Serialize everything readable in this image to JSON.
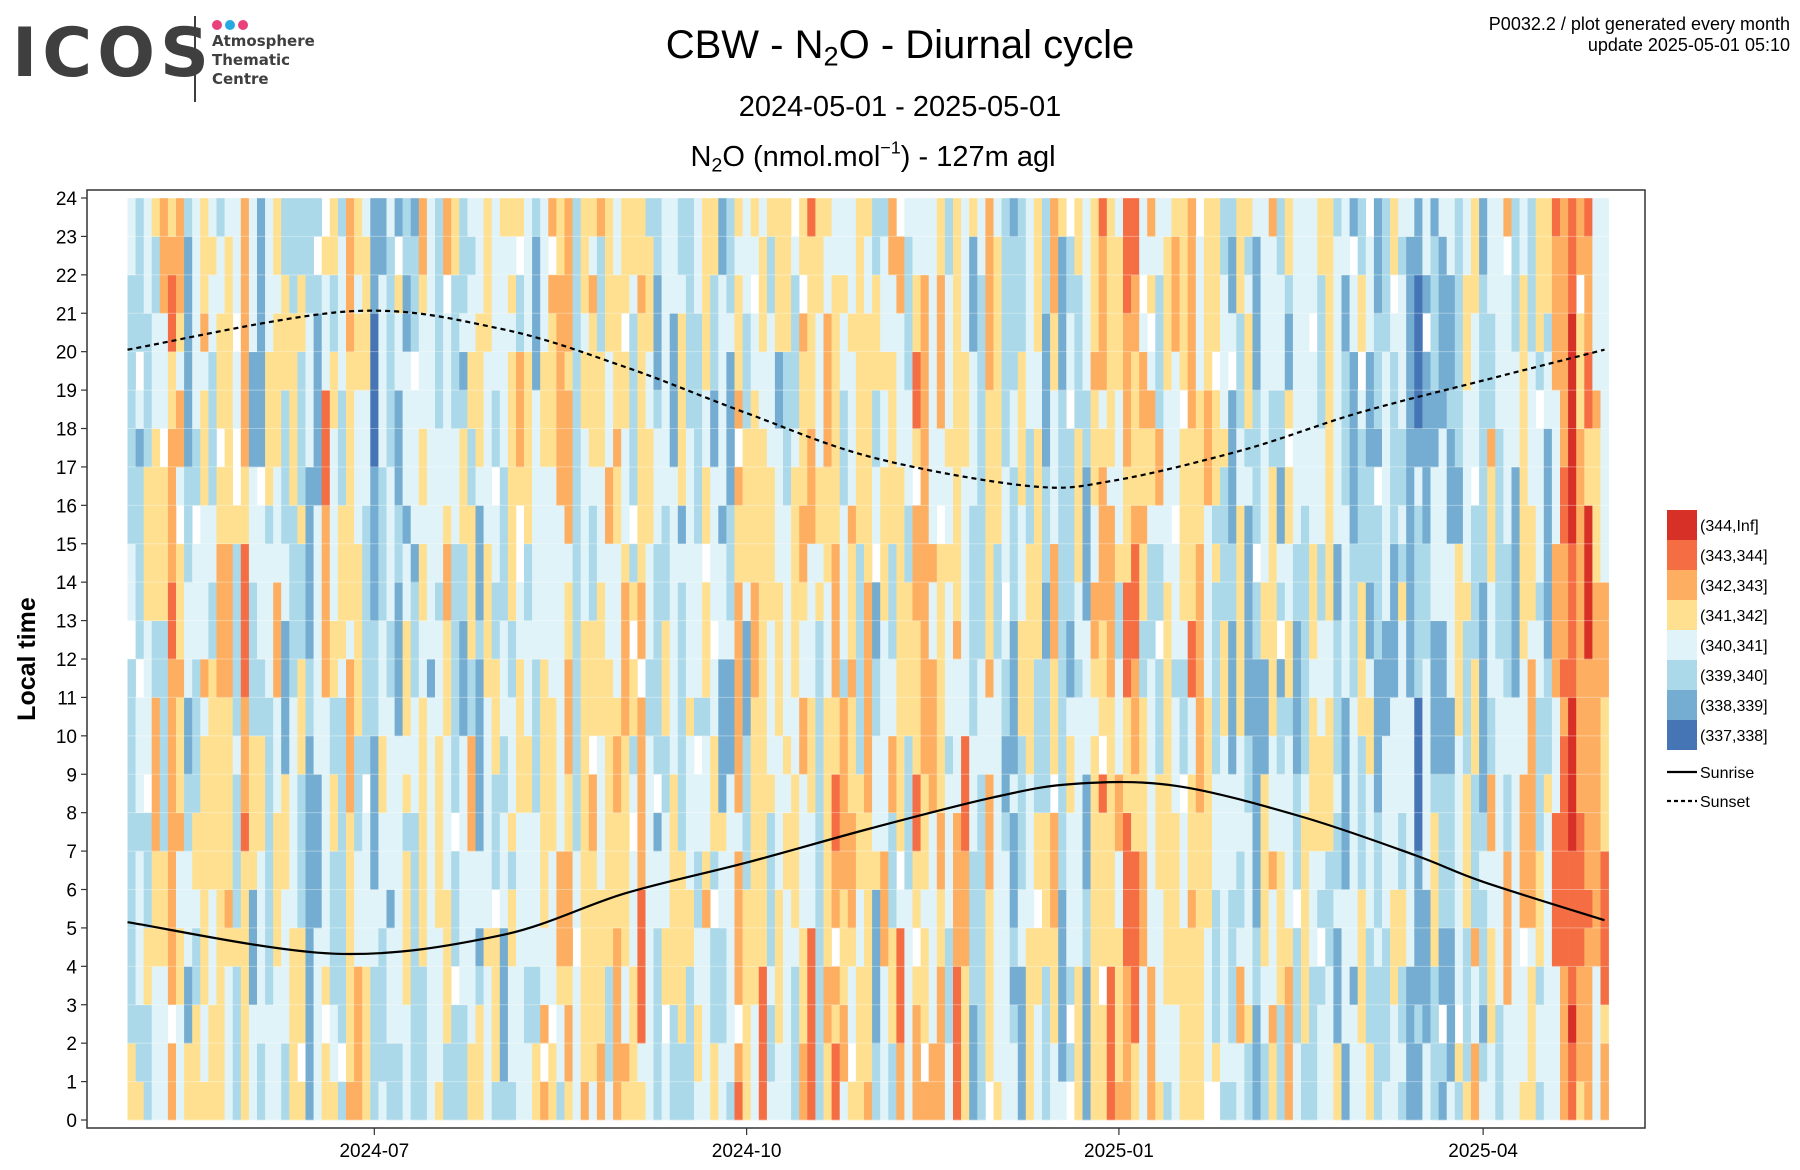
{
  "logo": {
    "wordmark": "ICOS",
    "line1": "Atmosphere",
    "line2": "Thematic",
    "line3": "Centre",
    "dot_colors": [
      "#e8417c",
      "#27a9e1",
      "#e8417c"
    ]
  },
  "meta": {
    "line1": "P0032.2 / plot generated every month",
    "line2": "update  2025-05-01 05:10"
  },
  "header": {
    "title_pre": "CBW - N",
    "title_sub": "2",
    "title_post": "O - Diurnal cycle",
    "subtitle": "2024-05-01 - 2025-05-01",
    "var_pre": "N",
    "var_sub": "2",
    "var_mid": "O (nmol.mol",
    "var_sup": "−1",
    "var_post": ") - 127m agl"
  },
  "chart_data": {
    "type": "heatmap",
    "ylabel": "Local time",
    "xlabel": "",
    "x_range": [
      "2024-05-01",
      "2025-05-01"
    ],
    "y_range": [
      0,
      24
    ],
    "x_ticks": [
      "2024-07",
      "2024-10",
      "2025-01",
      "2025-04"
    ],
    "y_ticks": [
      0,
      1,
      2,
      3,
      4,
      5,
      6,
      7,
      8,
      9,
      10,
      11,
      12,
      13,
      14,
      15,
      16,
      17,
      18,
      19,
      20,
      21,
      22,
      23,
      24
    ],
    "grid": true,
    "legend_position": "right",
    "color_bins": [
      {
        "label": "(344,Inf]",
        "color": "#d73027"
      },
      {
        "label": "(343,344]",
        "color": "#f46d43"
      },
      {
        "label": "(342,343]",
        "color": "#fdae61"
      },
      {
        "label": "(341,342]",
        "color": "#fee090"
      },
      {
        "label": "(340,341]",
        "color": "#e0f3f8"
      },
      {
        "label": "(339,340]",
        "color": "#abd9e9"
      },
      {
        "label": "(338,339]",
        "color": "#74add1"
      },
      {
        "label": "(337,338]",
        "color": "#4575b4"
      }
    ],
    "cell_hours": 1,
    "cell_days": 2,
    "sunrise": {
      "label": "Sunrise",
      "points": [
        [
          "2024-05-01",
          5.15
        ],
        [
          "2024-06-21",
          4.33
        ],
        [
          "2024-08-01",
          4.8
        ],
        [
          "2024-09-01",
          5.9
        ],
        [
          "2024-10-01",
          6.7
        ],
        [
          "2024-11-01",
          7.6
        ],
        [
          "2024-12-01",
          8.4
        ],
        [
          "2024-12-21",
          8.75
        ],
        [
          "2025-01-15",
          8.7
        ],
        [
          "2025-02-15",
          7.9
        ],
        [
          "2025-03-15",
          6.9
        ],
        [
          "2025-04-01",
          6.2
        ],
        [
          "2025-05-01",
          5.2
        ]
      ]
    },
    "sunset": {
      "label": "Sunset",
      "points": [
        [
          "2024-05-01",
          20.05
        ],
        [
          "2024-06-25",
          21.05
        ],
        [
          "2024-08-01",
          20.6
        ],
        [
          "2024-09-01",
          19.6
        ],
        [
          "2024-10-01",
          18.4
        ],
        [
          "2024-11-01",
          17.25
        ],
        [
          "2024-12-10",
          16.5
        ],
        [
          "2024-12-31",
          16.65
        ],
        [
          "2025-02-01",
          17.45
        ],
        [
          "2025-03-01",
          18.4
        ],
        [
          "2025-04-01",
          19.25
        ],
        [
          "2025-05-01",
          20.05
        ]
      ]
    }
  }
}
